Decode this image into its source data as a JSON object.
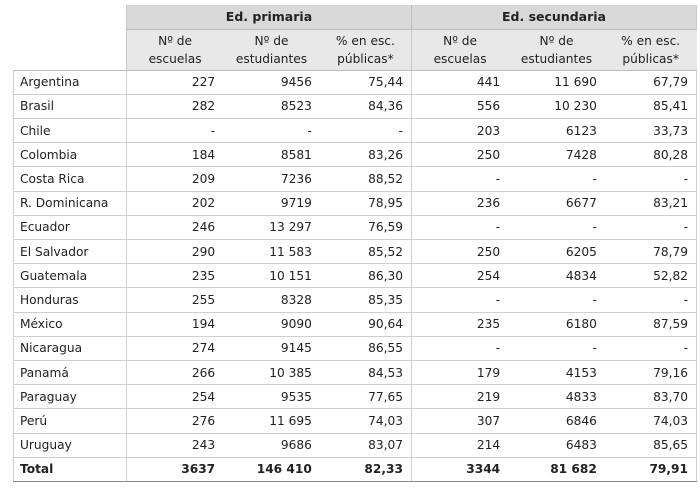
{
  "groups": {
    "primary": "Ed. primaria",
    "secondary": "Ed. secundaria"
  },
  "subheaders": [
    "Nº de escuelas",
    "Nº de estudiantes",
    "% en esc. públicas*",
    "Nº de escuelas",
    "Nº de estudiantes",
    "% en esc. públicas*"
  ],
  "rows": [
    {
      "country": "Argentina",
      "cells": [
        "227",
        "9456",
        "75,44",
        "441",
        "11 690",
        "67,79"
      ]
    },
    {
      "country": "Brasil",
      "cells": [
        "282",
        "8523",
        "84,36",
        "556",
        "10 230",
        "85,41"
      ]
    },
    {
      "country": "Chile",
      "cells": [
        "-",
        "-",
        "-",
        "203",
        "6123",
        "33,73"
      ]
    },
    {
      "country": "Colombia",
      "cells": [
        "184",
        "8581",
        "83,26",
        "250",
        "7428",
        "80,28"
      ]
    },
    {
      "country": "Costa Rica",
      "cells": [
        "209",
        "7236",
        "88,52",
        "-",
        "-",
        "-"
      ]
    },
    {
      "country": "R. Dominicana",
      "cells": [
        "202",
        "9719",
        "78,95",
        "236",
        "6677",
        "83,21"
      ]
    },
    {
      "country": "Ecuador",
      "cells": [
        "246",
        "13 297",
        "76,59",
        "-",
        "-",
        "-"
      ]
    },
    {
      "country": "El Salvador",
      "cells": [
        "290",
        "11 583",
        "85,52",
        "250",
        "6205",
        "78,79"
      ]
    },
    {
      "country": "Guatemala",
      "cells": [
        "235",
        "10 151",
        "86,30",
        "254",
        "4834",
        "52,82"
      ]
    },
    {
      "country": "Honduras",
      "cells": [
        "255",
        "8328",
        "85,35",
        "-",
        "-",
        "-"
      ]
    },
    {
      "country": "México",
      "cells": [
        "194",
        "9090",
        "90,64",
        "235",
        "6180",
        "87,59"
      ]
    },
    {
      "country": "Nicaragua",
      "cells": [
        "274",
        "9145",
        "86,55",
        "-",
        "-",
        "-"
      ]
    },
    {
      "country": "Panamá",
      "cells": [
        "266",
        "10 385",
        "84,53",
        "179",
        "4153",
        "79,16"
      ]
    },
    {
      "country": "Paraguay",
      "cells": [
        "254",
        "9535",
        "77,65",
        "219",
        "4833",
        "83,70"
      ]
    },
    {
      "country": "Perú",
      "cells": [
        "276",
        "11 695",
        "74,03",
        "307",
        "6846",
        "74,03"
      ]
    },
    {
      "country": "Uruguay",
      "cells": [
        "243",
        "9686",
        "83,07",
        "214",
        "6483",
        "85,65"
      ]
    }
  ],
  "total": {
    "label": "Total",
    "cells": [
      "3637",
      "146 410",
      "82,33",
      "3344",
      "81 682",
      "79,91"
    ]
  }
}
